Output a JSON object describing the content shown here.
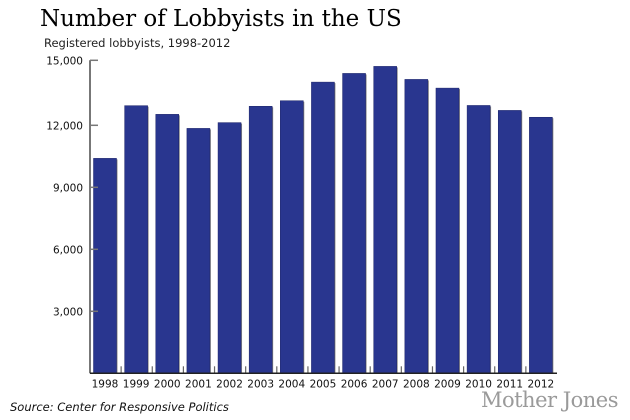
{
  "chart_data": {
    "type": "bar",
    "title": "Number of Lobbyists in the US",
    "subtitle": "Registered lobbyists, 1998-2012",
    "xlabel": "",
    "ylabel": "",
    "categories": [
      "1998",
      "1999",
      "2000",
      "2001",
      "2002",
      "2003",
      "2004",
      "2005",
      "2006",
      "2007",
      "2008",
      "2009",
      "2010",
      "2011",
      "2012"
    ],
    "values": [
      10400,
      12950,
      12530,
      11850,
      12130,
      12920,
      13190,
      14090,
      14510,
      14850,
      14220,
      13800,
      12960,
      12720,
      12390
    ],
    "ylim": [
      0,
      15000
    ],
    "yticks": [
      3000,
      6000,
      9000,
      12000,
      15000
    ],
    "ytick_labels": [
      "3,000",
      "6,000",
      "9,000",
      "12,000",
      "15,000"
    ],
    "grid": false,
    "bar_color": "#29368f",
    "source": "Source: Center for Responsive Politics",
    "logo": "Mother Jones"
  }
}
